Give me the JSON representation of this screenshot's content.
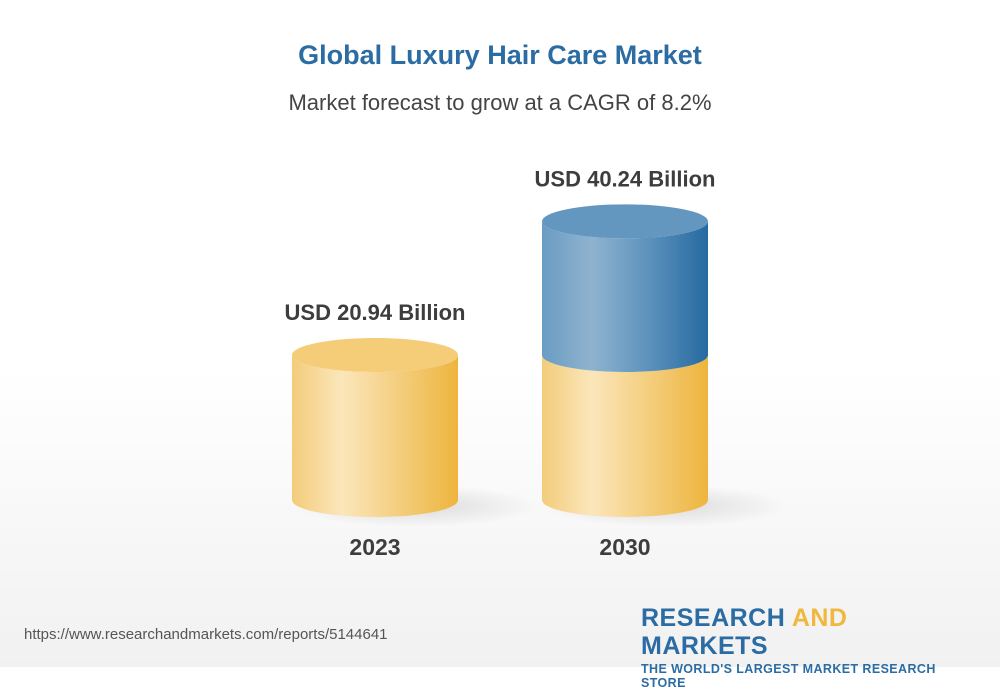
{
  "title": "Global Luxury Hair Care Market",
  "subtitle": "Market forecast to grow at a CAGR of 8.2%",
  "footer": {
    "url": "https://www.researchandmarkets.com/reports/5144641",
    "logo_line1_a": "RESEARCH",
    "logo_line1_b": "AND",
    "logo_line1_c": "MARKETS",
    "logo_line2": "THE WORLD'S LARGEST MARKET RESEARCH STORE"
  },
  "chart_data": {
    "type": "bar",
    "style": "3d-cylinder",
    "title": "Global Luxury Hair Care Market",
    "subtitle": "Market forecast to grow at a CAGR of 8.2%",
    "categories": [
      "2023",
      "2030"
    ],
    "values": [
      20.94,
      40.24
    ],
    "data_labels": [
      "USD 20.94 Billion",
      "USD 40.24 Billion"
    ],
    "unit": "USD Billion",
    "grid": false,
    "colors": {
      "base": "#f0b93d",
      "growth": "#2a6ca3"
    }
  }
}
